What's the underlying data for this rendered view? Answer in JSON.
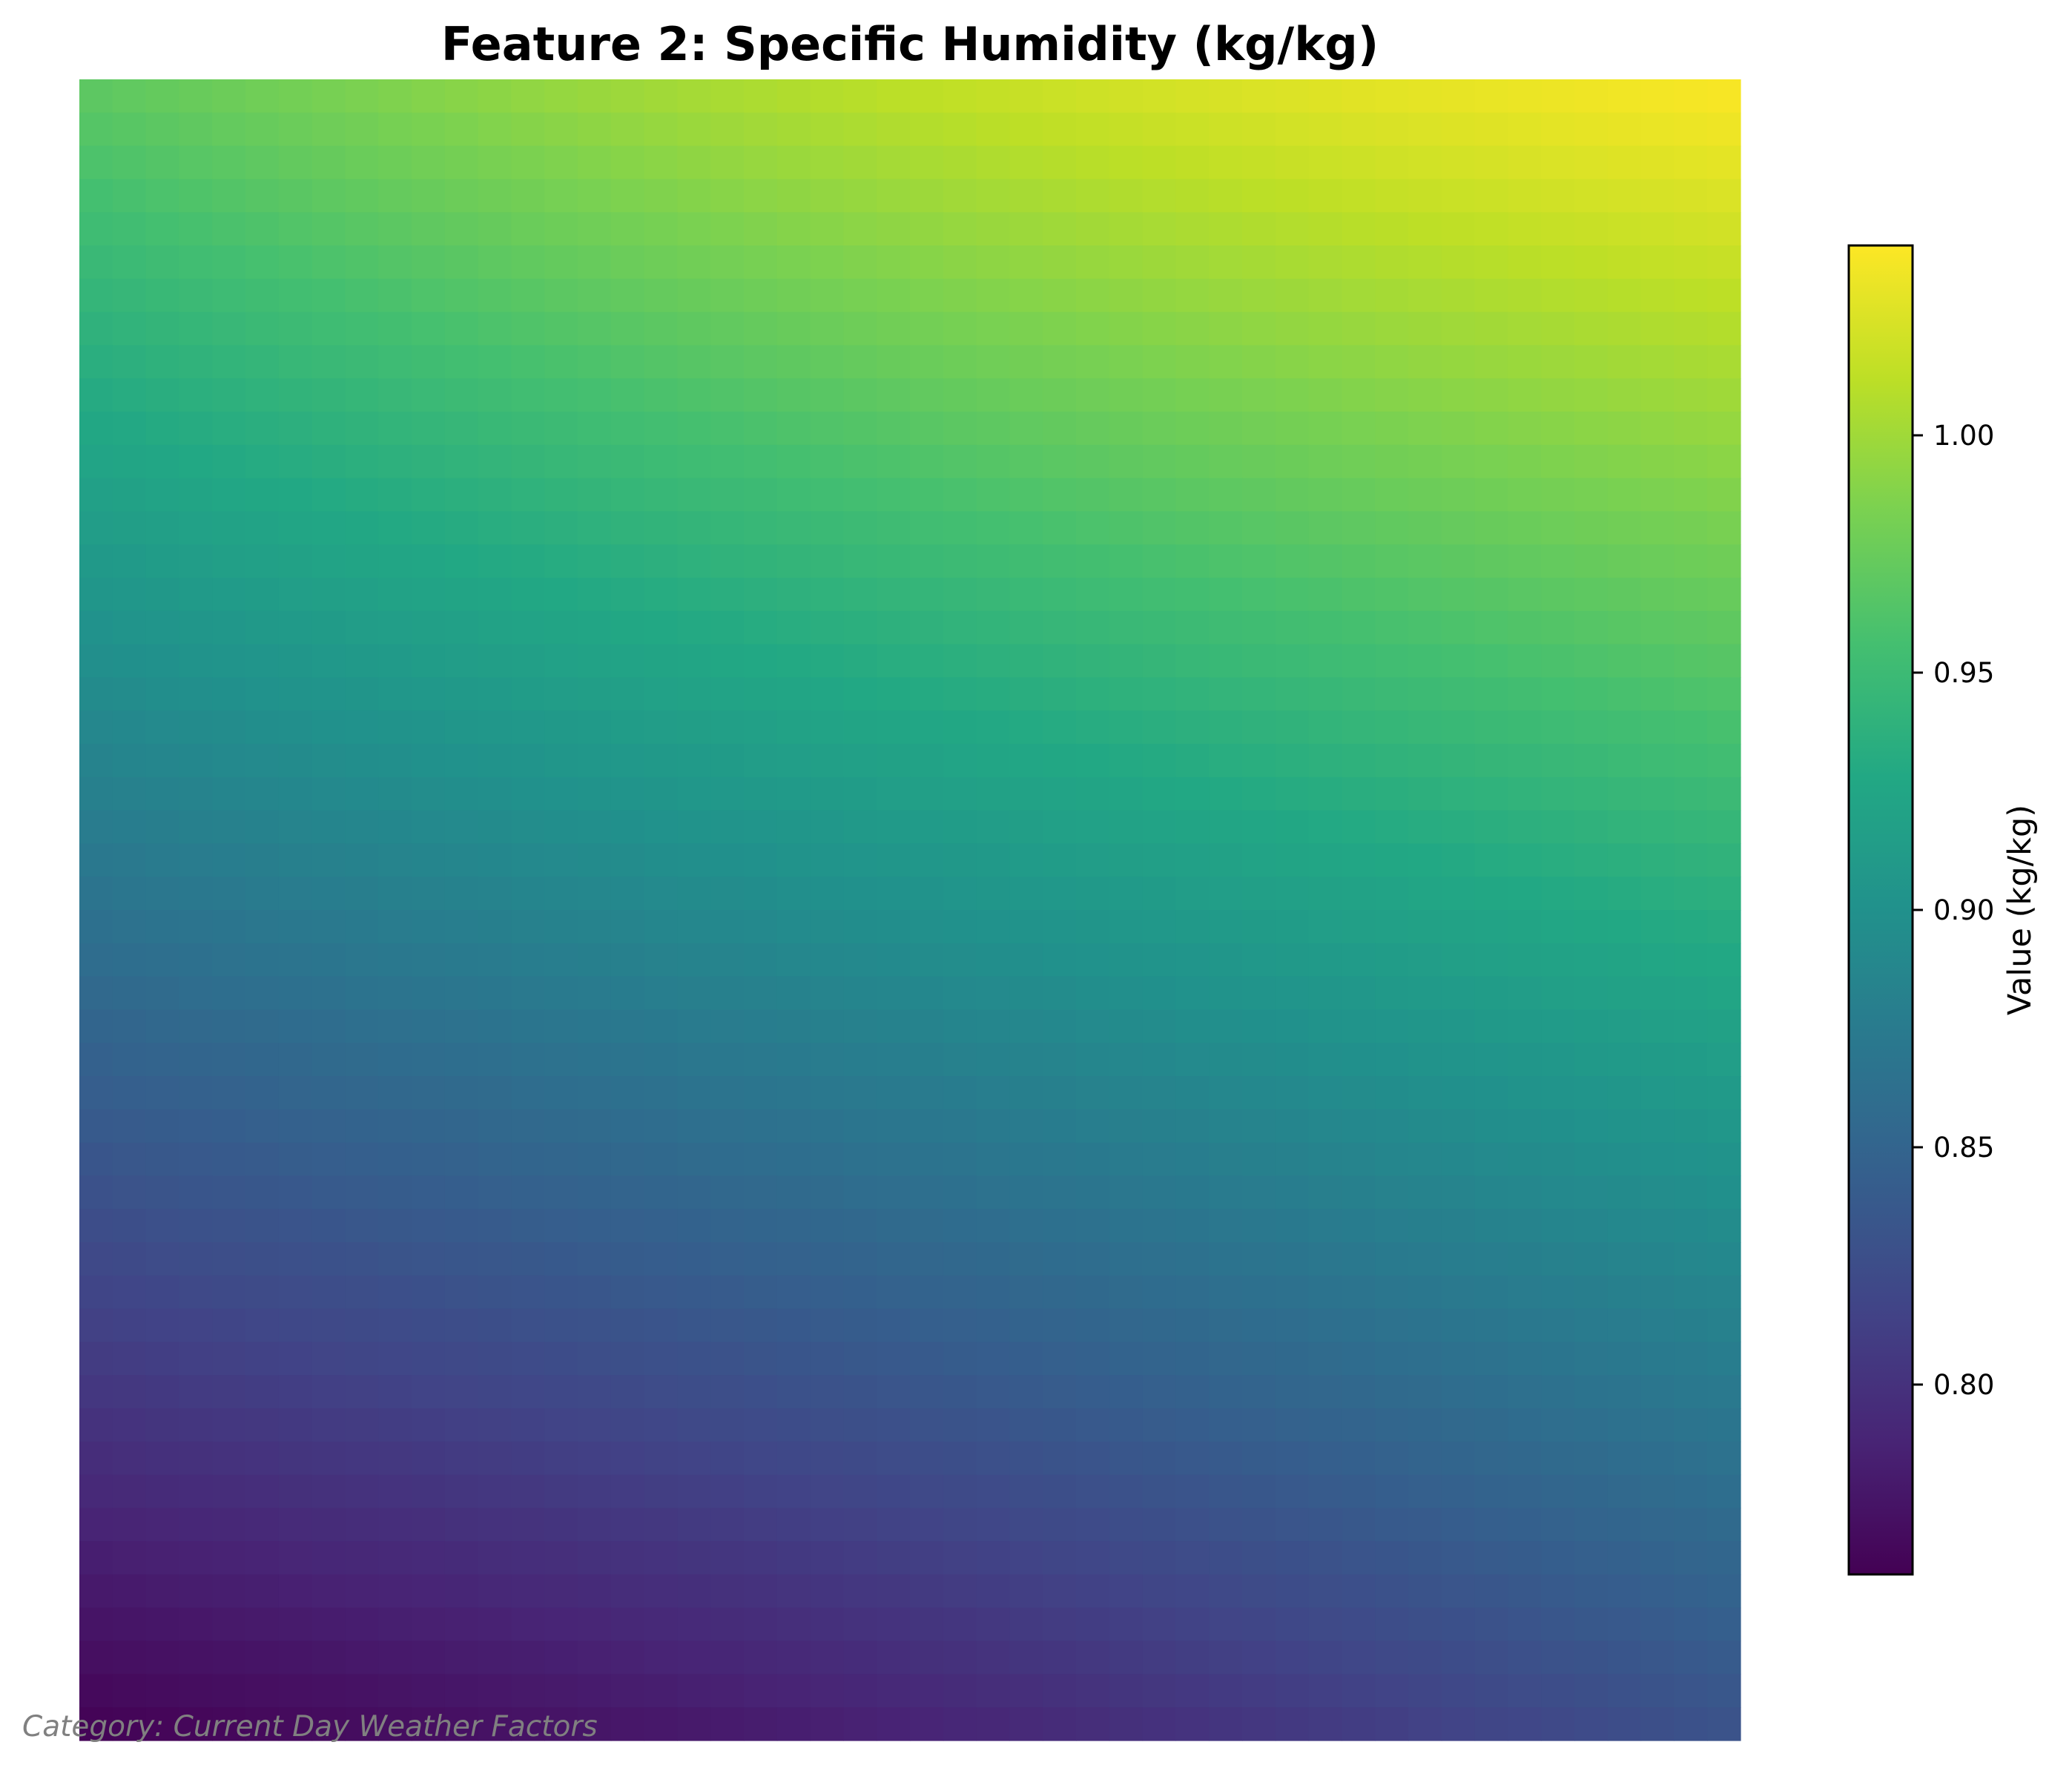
{
  "title": "Feature 2: Specific Humidity (kg/kg)",
  "footer_note": "Category: Current Day Weather Factors",
  "chart_data": {
    "type": "heatmap",
    "title": "Feature 2: Specific Humidity (kg/kg)",
    "xlabel": "",
    "ylabel": "",
    "axes_visible": false,
    "grid": false,
    "colormap": "viridis",
    "grid_size": [
      50,
      50
    ],
    "field_model": {
      "form": "smooth gradient, low at bottom-left, high at top-right",
      "corner_values": {
        "top_left": 0.97,
        "top_right": 1.04,
        "bottom_left": 0.76,
        "bottom_right": 0.83
      },
      "center_value": 0.9
    },
    "colorbar": {
      "label": "Value (kg/kg)",
      "vmin": 0.76,
      "vmax": 1.04,
      "ticks": [
        0.8,
        0.85,
        0.9,
        0.95,
        1.0
      ],
      "tick_labels": [
        "0.80",
        "0.85",
        "0.90",
        "0.95",
        "1.00"
      ],
      "orientation": "vertical",
      "position": "right"
    }
  }
}
